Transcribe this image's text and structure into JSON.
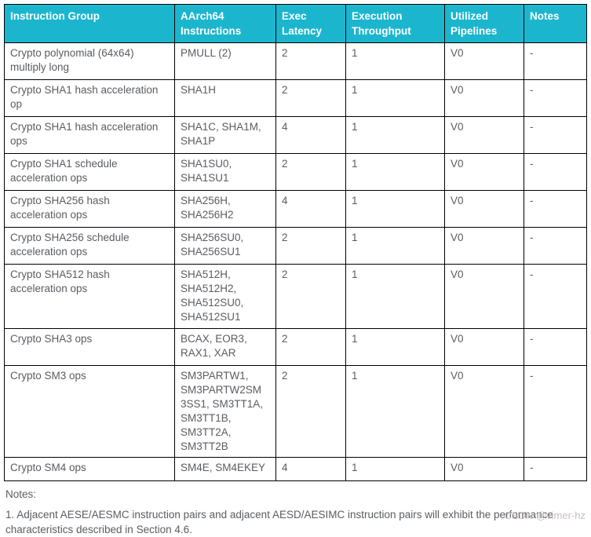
{
  "colors": {
    "header_bg": "#1bb6ce",
    "header_text": "#ffffff",
    "body_text": "#5a5c61",
    "border_color": "#000000",
    "watermark_color": "#c6bfbf"
  },
  "table": {
    "headers": [
      {
        "key": "group",
        "label": "Instruction Group"
      },
      {
        "key": "instructions",
        "label": "AArch64\nInstructions"
      },
      {
        "key": "latency",
        "label": "Exec\nLatency"
      },
      {
        "key": "throughput",
        "label": "Execution\nThroughput"
      },
      {
        "key": "pipelines",
        "label": "Utilized\nPipelines"
      },
      {
        "key": "notes",
        "label": "Notes"
      }
    ],
    "rows": [
      {
        "group": "Crypto polynomial (64x64)\nmultiply long",
        "instructions": "PMULL (2)",
        "latency": "2",
        "throughput": "1",
        "pipelines": "V0",
        "notes": "-"
      },
      {
        "group": "Crypto SHA1 hash acceleration\nop",
        "instructions": "SHA1H",
        "latency": "2",
        "throughput": "1",
        "pipelines": "V0",
        "notes": "-"
      },
      {
        "group": "Crypto SHA1 hash acceleration\nops",
        "instructions": "SHA1C, SHA1M,\nSHA1P",
        "latency": "4",
        "throughput": "1",
        "pipelines": "V0",
        "notes": "-"
      },
      {
        "group": "Crypto SHA1 schedule\nacceleration ops",
        "instructions": "SHA1SU0,\nSHA1SU1",
        "latency": "2",
        "throughput": "1",
        "pipelines": "V0",
        "notes": "-"
      },
      {
        "group": "Crypto SHA256 hash\nacceleration ops",
        "instructions": "SHA256H,\nSHA256H2",
        "latency": "4",
        "throughput": "1",
        "pipelines": "V0",
        "notes": "-"
      },
      {
        "group": "Crypto SHA256 schedule\nacceleration ops",
        "instructions": "SHA256SU0,\nSHA256SU1",
        "latency": "2",
        "throughput": "1",
        "pipelines": "V0",
        "notes": "-"
      },
      {
        "group": "Crypto SHA512 hash\nacceleration ops",
        "instructions": "SHA512H,\nSHA512H2,\nSHA512SU0,\nSHA512SU1",
        "latency": "2",
        "throughput": "1",
        "pipelines": "V0",
        "notes": "-"
      },
      {
        "group": "Crypto SHA3 ops",
        "instructions": "BCAX, EOR3,\nRAX1, XAR",
        "latency": "2",
        "throughput": "1",
        "pipelines": "V0",
        "notes": "-"
      },
      {
        "group": "Crypto SM3 ops",
        "instructions": "SM3PARTW1,\nSM3PARTW2SM\n3SS1, SM3TT1A,\nSM3TT1B,\nSM3TT2A,\nSM3TT2B",
        "latency": "2",
        "throughput": "1",
        "pipelines": "V0",
        "notes": "-"
      },
      {
        "group": "Crypto SM4 ops",
        "instructions": "SM4E, SM4EKEY",
        "latency": "4",
        "throughput": "1",
        "pipelines": "V0",
        "notes": "-"
      }
    ]
  },
  "footer": {
    "notes_heading": "Notes:",
    "note_1": "1. Adjacent AESE/AESMC instruction pairs and adjacent AESD/AESIMC instruction pairs will exhibit the performance characteristics described in Section 4.6."
  },
  "watermark": "CSDN @vimer-hz"
}
